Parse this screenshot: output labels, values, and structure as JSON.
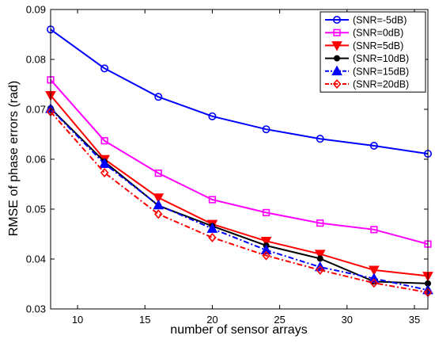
{
  "chart_data": {
    "type": "line",
    "title": "",
    "xlabel": "number of sensor arrays",
    "ylabel": "RMSE of phase errors (rad)",
    "xlim": [
      8,
      36
    ],
    "ylim": [
      0.03,
      0.09
    ],
    "xticks": [
      10,
      15,
      20,
      25,
      30,
      35
    ],
    "yticks": [
      0.03,
      0.04,
      0.05,
      0.06,
      0.07,
      0.08,
      0.09
    ],
    "ytick_labels": [
      "0.03",
      "0.04",
      "0.05",
      "0.06",
      "0.07",
      "0.08",
      "0.09"
    ],
    "grid": false,
    "legend_position": "top-right",
    "x": [
      8,
      12,
      16,
      20,
      24,
      28,
      32,
      36
    ],
    "series": [
      {
        "name": "(SNR=-5dB)",
        "color": "#0000ff",
        "dash": "solid",
        "marker": "circle",
        "values": [
          0.086,
          0.0782,
          0.0725,
          0.0686,
          0.066,
          0.0641,
          0.0627,
          0.0611
        ]
      },
      {
        "name": "(SNR=0dB)",
        "color": "#ff00ff",
        "dash": "solid",
        "marker": "square",
        "values": [
          0.0759,
          0.0637,
          0.0572,
          0.0519,
          0.0493,
          0.0472,
          0.0459,
          0.043
        ]
      },
      {
        "name": "(SNR=5dB)",
        "color": "#ff0000",
        "dash": "solid",
        "marker": "triangle-down",
        "values": [
          0.0728,
          0.06,
          0.0523,
          0.047,
          0.0436,
          0.041,
          0.0378,
          0.0366
        ]
      },
      {
        "name": "(SNR=10dB)",
        "color": "#000000",
        "dash": "solid",
        "marker": "dot",
        "values": [
          0.0702,
          0.0595,
          0.0507,
          0.0466,
          0.0427,
          0.0401,
          0.0355,
          0.0351
        ]
      },
      {
        "name": "(SNR=15dB)",
        "color": "#0000ff",
        "dash": "dashdot",
        "marker": "triangle-up",
        "values": [
          0.0701,
          0.0591,
          0.0508,
          0.0461,
          0.0418,
          0.0384,
          0.0361,
          0.0338
        ]
      },
      {
        "name": "(SNR=20dB)",
        "color": "#ff0000",
        "dash": "dashdot",
        "marker": "diamond",
        "values": [
          0.0695,
          0.0573,
          0.049,
          0.0443,
          0.0407,
          0.0378,
          0.0352,
          0.0333
        ]
      }
    ]
  }
}
